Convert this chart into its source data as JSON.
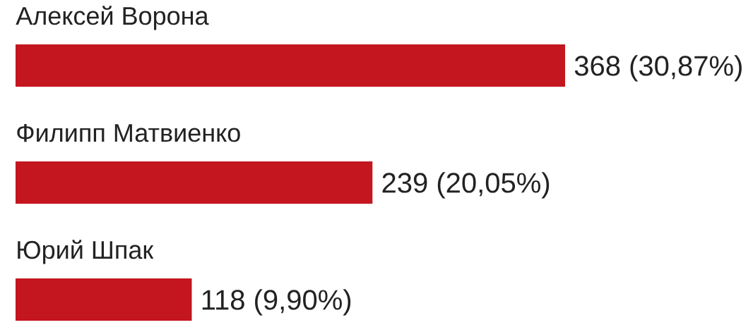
{
  "chart_data": {
    "type": "bar",
    "orientation": "horizontal",
    "categories": [
      "Алексей Ворона",
      "Филипп Матвиенко",
      "Юрий Шпак"
    ],
    "values": [
      368,
      239,
      118
    ],
    "value_labels": [
      "368 (30,87%)",
      "239 (20,05%)",
      "118 (9,90%)"
    ],
    "color": "#c4161f"
  }
}
